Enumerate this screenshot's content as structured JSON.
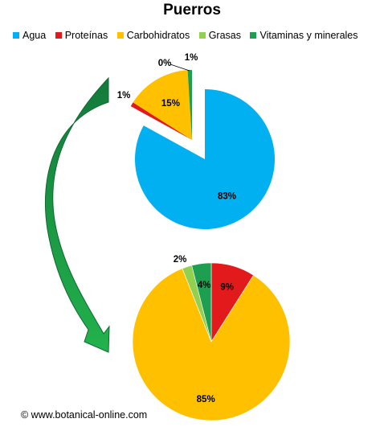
{
  "chart_data": [
    {
      "type": "pie",
      "title": "Puerros",
      "categories": [
        "Agua",
        "Proteínas",
        "Carbohidratos",
        "Grasas",
        "Vitaminas y minerales"
      ],
      "values": [
        83,
        1,
        15,
        0,
        1
      ],
      "value_labels": [
        "83%",
        "1%",
        "15%",
        "0%",
        "1%"
      ],
      "exploded_categories": [
        "Proteínas",
        "Carbohidratos",
        "Grasas",
        "Vitaminas y minerales"
      ],
      "legend": "top"
    },
    {
      "type": "pie",
      "categories": [
        "Proteínas",
        "Carbohidratos",
        "Grasas",
        "Vitaminas y minerales"
      ],
      "values": [
        9,
        85,
        2,
        4
      ],
      "value_labels": [
        "9%",
        "85%",
        "2%",
        "4%"
      ]
    }
  ],
  "colors": {
    "Agua": "#00B0F0",
    "Proteínas": "#E31A1C",
    "Carbohidratos": "#FFC000",
    "Grasas": "#92D050",
    "Vitaminas y minerales": "#1E9E50",
    "arrow_dark": "#137A3B",
    "arrow_light": "#22B24C"
  },
  "credit": "© www.botanical-online.com"
}
